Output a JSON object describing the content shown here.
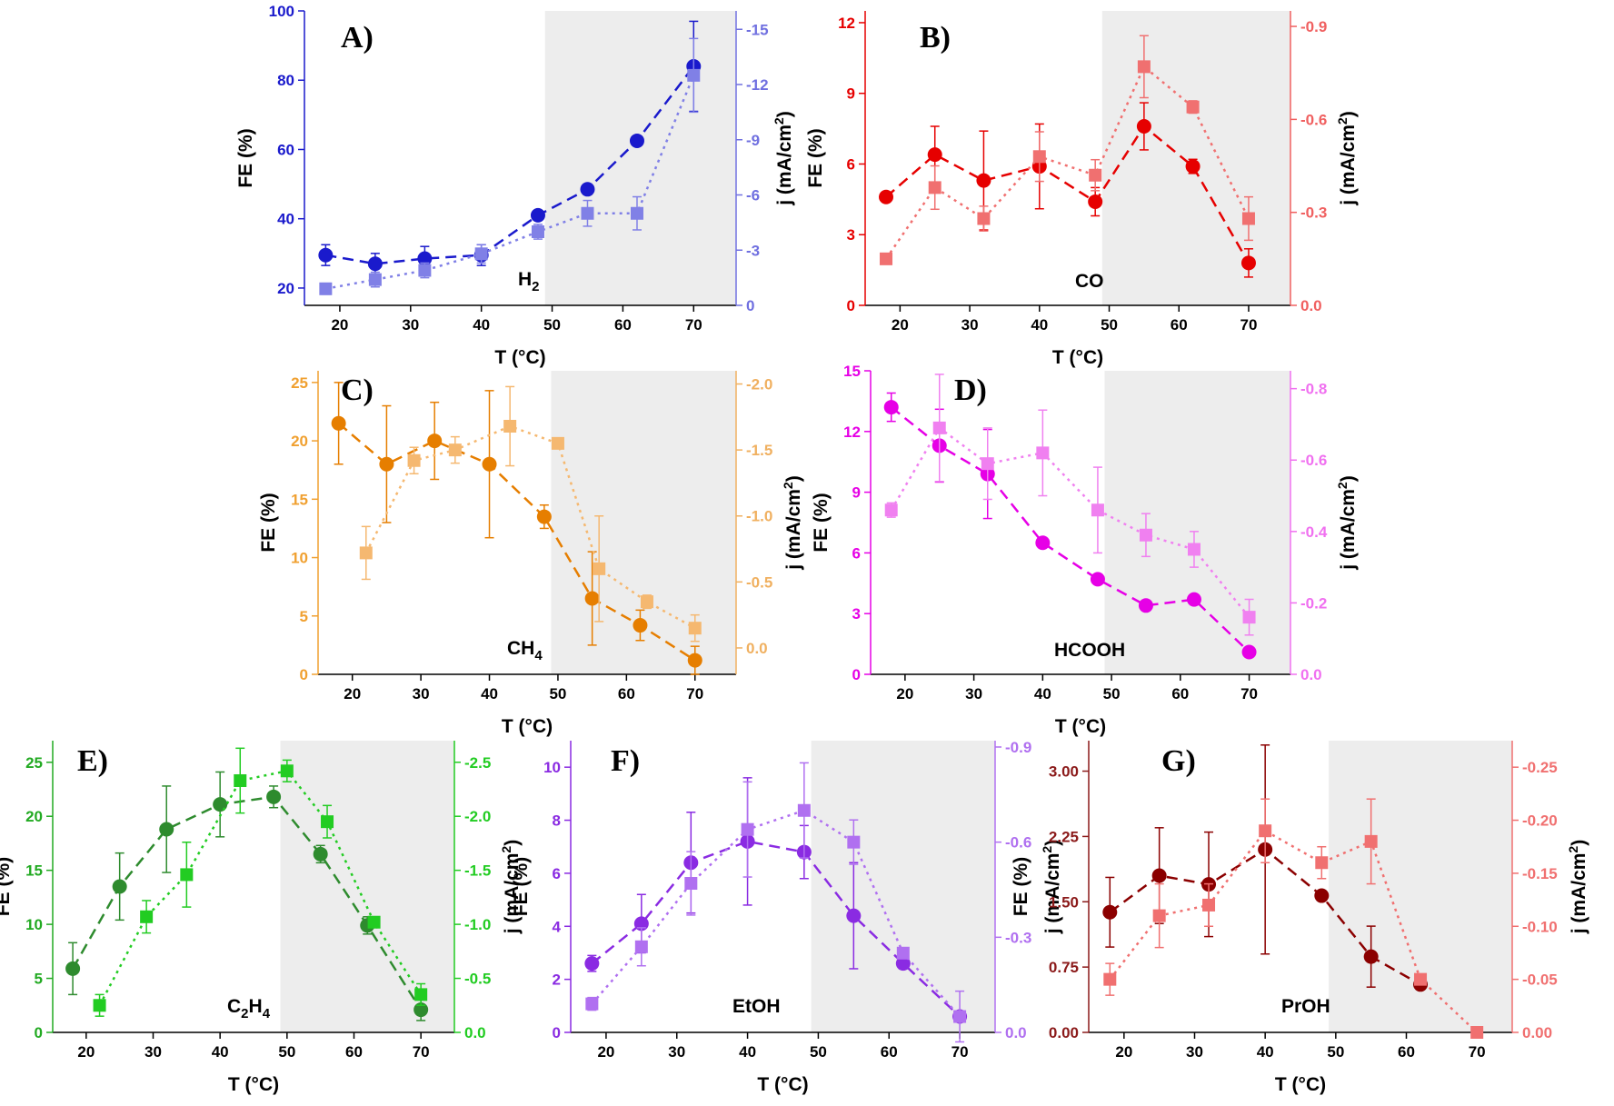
{
  "chart_data": [
    {
      "type": "scatter",
      "panel_label": "A)",
      "species": "H",
      "species_sub": "2",
      "xlabel": "T (°C)",
      "ylabel_left": "FE (%)",
      "ylabel_right": "j (mA/cm",
      "ylabel_right_sup": "2",
      "ylabel_right_close": ")",
      "xlim": [
        15,
        76
      ],
      "ylim_left": [
        15,
        100
      ],
      "ylim_right": [
        0,
        -16
      ],
      "xticks": [
        "20",
        "30",
        "40",
        "50",
        "60",
        "70"
      ],
      "yticks_left": [
        "20",
        "40",
        "60",
        "80",
        "100"
      ],
      "yticks_right": [
        "0",
        "-3",
        "-6",
        "-9",
        "-12",
        "-15"
      ],
      "shaded_region": [
        49,
        76
      ],
      "colors": {
        "fe": "#1a1acc",
        "j": "#8080e6",
        "left_axis": "#1a1acc",
        "right_axis": "#7070e0"
      },
      "series": [
        {
          "name": "FE",
          "axis": "left",
          "x": [
            18,
            25,
            32,
            40,
            48,
            55,
            62,
            70
          ],
          "y": [
            29.5,
            27,
            28.5,
            29.5,
            41,
            48.5,
            62.5,
            84
          ],
          "err": [
            3,
            3,
            3.5,
            3,
            1,
            1.5,
            1,
            13
          ]
        },
        {
          "name": "j",
          "axis": "right",
          "x": [
            18,
            25,
            32,
            40,
            48,
            55,
            62,
            70
          ],
          "y": [
            -0.9,
            -1.4,
            -1.9,
            -2.8,
            -4.0,
            -5.0,
            -5.0,
            -12.5
          ],
          "err": [
            0.3,
            0.4,
            0.4,
            0.5,
            0.4,
            0.7,
            0.9,
            2.0
          ]
        }
      ]
    },
    {
      "type": "scatter",
      "panel_label": "B)",
      "species": "CO",
      "species_sub": "",
      "xlabel": "T (°C)",
      "ylabel_left": "FE (%)",
      "ylabel_right": "j (mA/cm",
      "ylabel_right_sup": "2",
      "ylabel_right_close": ")",
      "xlim": [
        15,
        76
      ],
      "ylim_left": [
        0,
        12.5
      ],
      "ylim_right": [
        0,
        -0.95
      ],
      "xticks": [
        "20",
        "30",
        "40",
        "50",
        "60",
        "70"
      ],
      "yticks_left": [
        "0",
        "3",
        "6",
        "9",
        "12"
      ],
      "yticks_right": [
        "0.0",
        "-0.3",
        "-0.6",
        "-0.9"
      ],
      "shaded_region": [
        49,
        76
      ],
      "colors": {
        "fe": "#e60000",
        "j": "#f07070",
        "left_axis": "#e60000",
        "right_axis": "#f06060"
      },
      "series": [
        {
          "name": "FE",
          "axis": "left",
          "x": [
            18,
            25,
            32,
            40,
            48,
            55,
            62,
            70
          ],
          "y": [
            4.6,
            6.4,
            5.3,
            5.9,
            4.4,
            7.6,
            5.9,
            1.8
          ],
          "err": [
            0,
            1.2,
            2.1,
            1.8,
            0.6,
            1.0,
            0.3,
            0.6
          ]
        },
        {
          "name": "j",
          "axis": "right",
          "x": [
            18,
            25,
            32,
            40,
            48,
            55,
            62,
            70
          ],
          "y": [
            -0.15,
            -0.38,
            -0.28,
            -0.48,
            -0.42,
            -0.77,
            -0.64,
            -0.28
          ],
          "err": [
            0,
            0.07,
            0.04,
            0.08,
            0.05,
            0.1,
            0.02,
            0.07
          ]
        }
      ]
    },
    {
      "type": "scatter",
      "panel_label": "C)",
      "species": "CH",
      "species_sub": "4",
      "xlabel": "T (°C)",
      "ylabel_left": "FE (%)",
      "ylabel_right": "j (mA/cm",
      "ylabel_right_sup": "2",
      "ylabel_right_close": ")",
      "xlim": [
        15,
        76
      ],
      "ylim_left": [
        0,
        26
      ],
      "ylim_right": [
        0.2,
        -2.1
      ],
      "xticks": [
        "20",
        "30",
        "40",
        "50",
        "60",
        "70"
      ],
      "yticks_left": [
        "0",
        "5",
        "10",
        "15",
        "20",
        "25"
      ],
      "yticks_right": [
        "0.0",
        "-0.5",
        "-1.0",
        "-1.5",
        "-2.0"
      ],
      "shaded_region": [
        49,
        76
      ],
      "colors": {
        "fe": "#e67e00",
        "j": "#f5b870",
        "left_axis": "#f0a030",
        "right_axis": "#f0b060"
      },
      "series": [
        {
          "name": "FE",
          "axis": "left",
          "x": [
            18,
            25,
            32,
            40,
            48,
            55,
            62,
            70
          ],
          "y": [
            21.5,
            18,
            20,
            18,
            13.5,
            6.5,
            4.2,
            1.2
          ],
          "err": [
            3.5,
            5,
            3.3,
            6.3,
            1,
            4,
            1.3,
            1.2
          ]
        },
        {
          "name": "j",
          "axis": "right",
          "x": [
            22,
            29,
            35,
            43,
            50,
            56,
            63,
            70
          ],
          "y": [
            -0.72,
            -1.42,
            -1.5,
            -1.68,
            -1.55,
            -0.6,
            -0.35,
            -0.15
          ],
          "err": [
            0.2,
            0.1,
            0.1,
            0.3,
            0,
            0.4,
            0.05,
            0.1
          ]
        }
      ]
    },
    {
      "type": "scatter",
      "panel_label": "D)",
      "species": "HCOOH",
      "species_sub": "",
      "xlabel": "T (°C)",
      "ylabel_left": "FE (%)",
      "ylabel_right": "j (mA/cm",
      "ylabel_right_sup": "2",
      "ylabel_right_close": ")",
      "xlim": [
        15,
        76
      ],
      "ylim_left": [
        0,
        15
      ],
      "ylim_right": [
        0,
        -0.85
      ],
      "xticks": [
        "20",
        "30",
        "40",
        "50",
        "60",
        "70"
      ],
      "yticks_left": [
        "0",
        "3",
        "6",
        "9",
        "12",
        "15"
      ],
      "yticks_right": [
        "0.0",
        "-0.2",
        "-0.4",
        "-0.6",
        "-0.8"
      ],
      "shaded_region": [
        49,
        76
      ],
      "colors": {
        "fe": "#e600e6",
        "j": "#f080f0",
        "left_axis": "#e600e6",
        "right_axis": "#f070f0"
      },
      "series": [
        {
          "name": "FE",
          "axis": "left",
          "x": [
            18,
            25,
            32,
            40,
            48,
            55,
            62,
            70
          ],
          "y": [
            13.2,
            11.3,
            9.9,
            6.5,
            4.7,
            3.4,
            3.7,
            1.1
          ],
          "err": [
            0.7,
            1.8,
            2.2,
            0,
            0,
            0,
            0,
            0
          ]
        },
        {
          "name": "j",
          "axis": "right",
          "x": [
            18,
            25,
            32,
            40,
            48,
            55,
            62,
            70
          ],
          "y": [
            -0.46,
            -0.69,
            -0.59,
            -0.62,
            -0.46,
            -0.39,
            -0.35,
            -0.16
          ],
          "err": [
            0.02,
            0.15,
            0.1,
            0.12,
            0.12,
            0.06,
            0.05,
            0.05
          ]
        }
      ]
    },
    {
      "type": "scatter",
      "panel_label": "E)",
      "species": "C",
      "species_sub": "2",
      "species_tail": "H",
      "species_sub2": "4",
      "xlabel": "T (°C)",
      "ylabel_left": "FE (%)",
      "ylabel_right": "j (mA/cm",
      "ylabel_right_sup": "2",
      "ylabel_right_close": ")",
      "xlim": [
        15,
        75
      ],
      "ylim_left": [
        0,
        27
      ],
      "ylim_right": [
        0,
        -2.7
      ],
      "xticks": [
        "20",
        "30",
        "40",
        "50",
        "60",
        "70"
      ],
      "yticks_left": [
        "0",
        "5",
        "10",
        "15",
        "20",
        "25"
      ],
      "yticks_right": [
        "0.0",
        "-0.5",
        "-1.0",
        "-1.5",
        "-2.0",
        "-2.5"
      ],
      "shaded_region": [
        49,
        75
      ],
      "colors": {
        "fe": "#2e8b2e",
        "j": "#22cc22",
        "left_axis": "#22aa22",
        "right_axis": "#22cc22"
      },
      "series": [
        {
          "name": "FE",
          "axis": "left",
          "x": [
            18,
            25,
            32,
            40,
            48,
            55,
            62,
            70
          ],
          "y": [
            5.9,
            13.5,
            18.8,
            21.1,
            21.8,
            16.5,
            9.9,
            2.1
          ],
          "err": [
            2.4,
            3.1,
            4,
            3,
            1,
            0.8,
            0.8,
            1
          ]
        },
        {
          "name": "j",
          "axis": "right",
          "x": [
            22,
            29,
            35,
            43,
            50,
            56,
            63,
            70
          ],
          "y": [
            -0.25,
            -1.07,
            -1.46,
            -2.33,
            -2.42,
            -1.95,
            -1.02,
            -0.35
          ],
          "err": [
            0.1,
            0.15,
            0.3,
            0.3,
            0.1,
            0.15,
            0.05,
            0.1
          ]
        }
      ]
    },
    {
      "type": "scatter",
      "panel_label": "F)",
      "species": "EtOH",
      "species_sub": "",
      "xlabel": "T (°C)",
      "ylabel_left": "FE (%)",
      "ylabel_right": "j (mA/cm",
      "ylabel_right_sup": "2",
      "ylabel_right_close": ")",
      "xlim": [
        15,
        75
      ],
      "ylim_left": [
        0,
        11
      ],
      "ylim_right": [
        0,
        -0.92
      ],
      "xticks": [
        "20",
        "30",
        "40",
        "50",
        "60",
        "70"
      ],
      "yticks_left": [
        "0",
        "2",
        "4",
        "6",
        "8",
        "10"
      ],
      "yticks_right": [
        "0.0",
        "-0.3",
        "-0.6",
        "-0.9"
      ],
      "shaded_region": [
        49,
        75
      ],
      "colors": {
        "fe": "#8a2be2",
        "j": "#b070f0",
        "left_axis": "#8a2be2",
        "right_axis": "#b070f0"
      },
      "series": [
        {
          "name": "FE",
          "axis": "left",
          "x": [
            18,
            25,
            32,
            40,
            48,
            55,
            62,
            70
          ],
          "y": [
            2.6,
            4.1,
            6.4,
            7.2,
            6.8,
            4.4,
            2.6,
            0.6
          ],
          "err": [
            0.3,
            1.1,
            1.9,
            2.4,
            1,
            2,
            0.2,
            0.2
          ]
        },
        {
          "name": "j",
          "axis": "right",
          "x": [
            18,
            25,
            32,
            40,
            48,
            55,
            62,
            70
          ],
          "y": [
            -0.09,
            -0.27,
            -0.47,
            -0.64,
            -0.7,
            -0.6,
            -0.25,
            -0.05
          ],
          "err": [
            0.02,
            0.06,
            0.1,
            0.15,
            0.15,
            0.07,
            0.01,
            0.08
          ]
        }
      ]
    },
    {
      "type": "scatter",
      "panel_label": "G)",
      "species": "PrOH",
      "species_sub": "",
      "xlabel": "T (°C)",
      "ylabel_left": "FE (%)",
      "ylabel_right": "j (mA/cm",
      "ylabel_right_sup": "2",
      "ylabel_right_close": ")",
      "xlim": [
        15,
        75
      ],
      "ylim_left": [
        0,
        3.35
      ],
      "ylim_right": [
        0,
        -0.275
      ],
      "xticks": [
        "20",
        "30",
        "40",
        "50",
        "60",
        "70"
      ],
      "yticks_left": [
        "0.00",
        "0.75",
        "1.50",
        "2.25",
        "3.00"
      ],
      "yticks_right": [
        "0.00",
        "-0.05",
        "-0.10",
        "-0.15",
        "-0.20",
        "-0.25"
      ],
      "shaded_region": [
        49,
        75
      ],
      "colors": {
        "fe": "#8b0000",
        "j": "#f07070",
        "left_axis": "#8b1a1a",
        "right_axis": "#f07070"
      },
      "series": [
        {
          "name": "FE",
          "axis": "left",
          "x": [
            18,
            25,
            32,
            40,
            48,
            55,
            62
          ],
          "y": [
            1.38,
            1.8,
            1.7,
            2.1,
            1.57,
            0.87,
            0.55
          ],
          "err": [
            0.4,
            0.55,
            0.6,
            1.2,
            0,
            0.35,
            0
          ]
        },
        {
          "name": "j",
          "axis": "right",
          "x": [
            18,
            25,
            32,
            40,
            48,
            55,
            62,
            70
          ],
          "y": [
            -0.05,
            -0.11,
            -0.12,
            -0.19,
            -0.16,
            -0.18,
            -0.05,
            0
          ],
          "err": [
            0.015,
            0.03,
            0.02,
            0.03,
            0.015,
            0.04,
            0,
            0
          ]
        }
      ]
    }
  ]
}
